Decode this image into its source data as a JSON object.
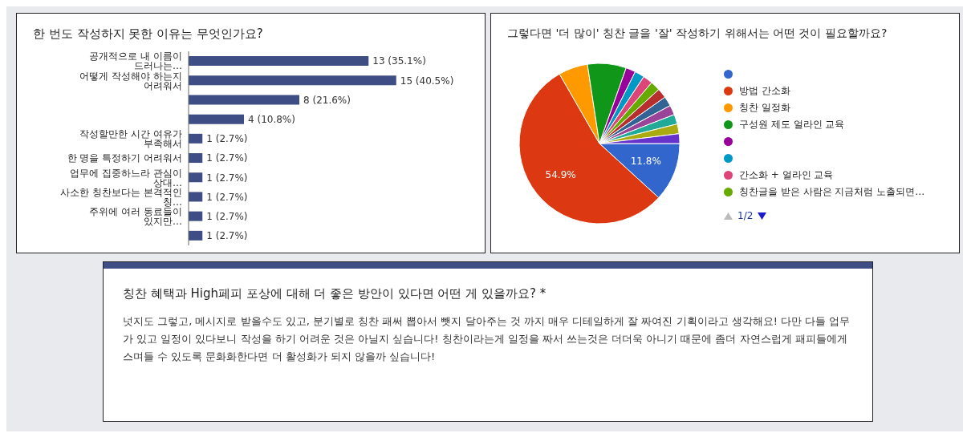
{
  "chart_data": [
    {
      "type": "bar",
      "orientation": "horizontal",
      "title": "한 번도 작성하지 못한 이유는 무엇인가요?",
      "categories": [
        "공개적으로 내 이름이 드러나는…",
        "어떻게 작성해야 하는지 어려워서",
        null,
        null,
        "작성할만한 시간 여유가 부족해서",
        "한 명을 특정하기 어려워서",
        "업무에 집중하느라 관심이 상대…",
        "사소한 칭찬보다는 본격적인 칭…",
        "주위에 여러 동료들이 있지만…",
        null
      ],
      "values": [
        13,
        15,
        8,
        4,
        1,
        1,
        1,
        1,
        1,
        1
      ],
      "color": "#3f4d85",
      "value_labels": [
        "13 (35.1%)",
        "15 (40.5%)",
        "8 (21.6%)",
        "4 (10.8%)",
        "1 (2.7%)",
        "1 (2.7%)",
        "1 (2.7%)",
        "1 (2.7%)",
        "1 (2.7%)",
        "1 (2.7%)"
      ]
    },
    {
      "type": "pie",
      "title": "그렇다면 '더 많이' 칭찬 글을 '잘' 작성하기 위해서는 어떤 것이 필요할까요?",
      "categories": [
        null,
        "방법 간소화",
        "칭찬 일정화",
        "구성원 제도 얼라인 교육",
        null,
        null,
        "간소화 + 얼라인 교육",
        "칭찬글을 받은 사람은 지금처럼 노출되면…",
        null,
        null,
        null,
        null,
        null,
        null
      ],
      "values": [
        11.8,
        54.9,
        5.9,
        7.8,
        1.96,
        1.96,
        1.96,
        1.96,
        1.96,
        1.96,
        1.96,
        1.96,
        1.96,
        1.96
      ],
      "colors": [
        "#3366cc",
        "#dc3912",
        "#ff9900",
        "#109618",
        "#990099",
        "#0099c6",
        "#dd4477",
        "#66aa00",
        "#b82e2e",
        "#316395",
        "#994499",
        "#22aa99",
        "#aaaa11",
        "#6633cc"
      ],
      "value_labels": [
        "11.8%",
        "54.9%",
        null,
        null,
        null,
        null,
        null,
        null,
        null,
        null,
        null,
        null,
        null,
        null
      ],
      "legend": "right",
      "annotations": [
        "1/2"
      ]
    },
    {
      "type": "other",
      "title": "칭찬 혜택과 High페피 포상에 대해 더 좋은 방안이 있다면 어떤 게 있을까요? *",
      "annotations": [
        "넛지도 그렇고, 메시지로 받을수도 있고, 분기별로 칭찬 패써 뽑아서 뺏지 달아주는 것 까지 매우 디테일하게 잘 짜여진 기획이라고 생각해요! 다만 다들 업무가 있고 일정이 있다보니 작성을 하기 어려운 것은 아닐지 싶습니다! 칭찬이라는게 일정을 짜서 쓰는것은 더더욱 아니기 때문에 좀더 자연스럽게 패피들에게 스며들 수 있도록 문화화한다면 더 활성화가 되지 않을까 싶습니다!"
      ]
    }
  ]
}
